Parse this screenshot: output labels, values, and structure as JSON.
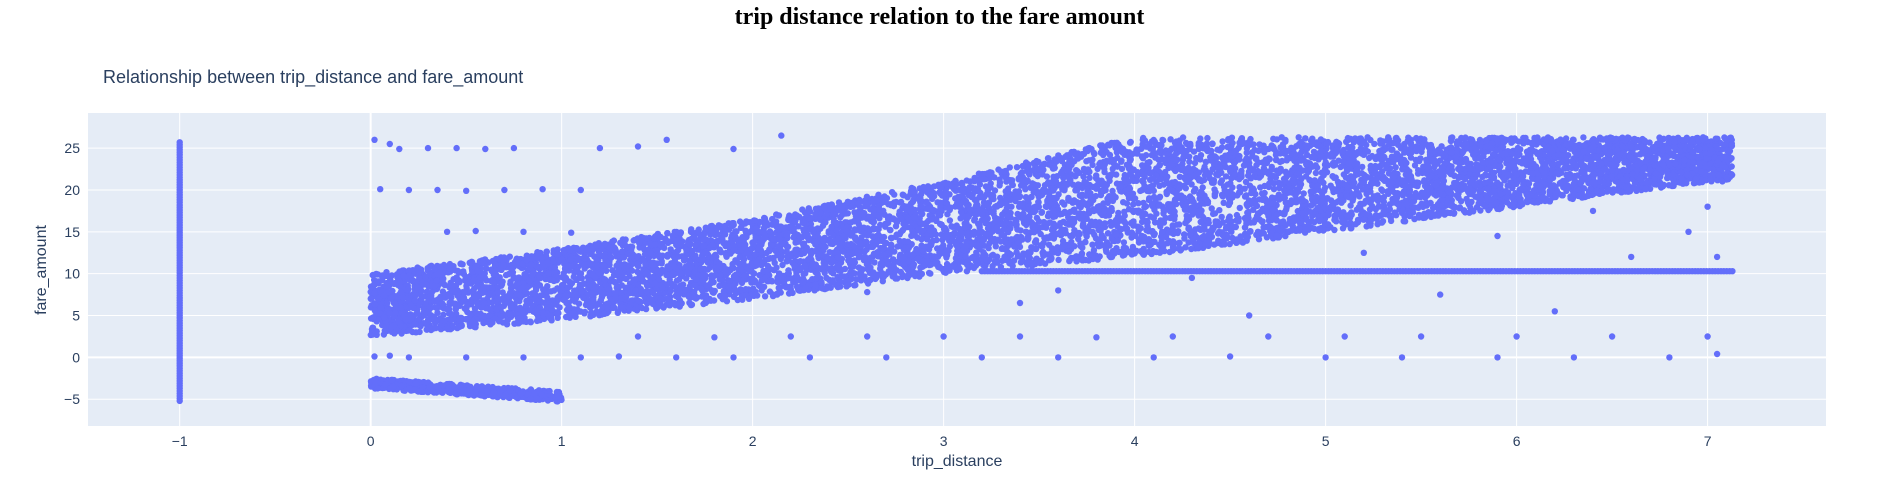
{
  "page_title": "trip distance relation to the fare amount",
  "colors": {
    "plot_bg": "#e5ecf6",
    "grid": "#ffffff",
    "marker": "#636efa",
    "text": "#2a3f5f"
  },
  "chart_data": {
    "type": "scatter",
    "title": "Relationship between trip_distance and fare_amount",
    "xlabel": "trip_distance",
    "ylabel": "fare_amount",
    "xlim": [
      -1.48,
      7.62
    ],
    "ylim": [
      -8.2,
      29.2
    ],
    "x_ticks": [
      -1,
      0,
      1,
      2,
      3,
      4,
      5,
      6,
      7
    ],
    "y_ticks": [
      -5,
      0,
      5,
      10,
      15,
      20,
      25
    ],
    "grid": true,
    "series": [
      {
        "color": "#636efa",
        "description_of_distribution": {
          "vertical_strip_at_x": -1,
          "strip_y_range": [
            -5.2,
            26.0
          ],
          "main_band_lower_edge": [
            [
              0,
              2.5
            ],
            [
              1,
              4.5
            ],
            [
              2,
              7
            ],
            [
              3,
              10
            ],
            [
              4,
              12
            ],
            [
              5,
              15
            ],
            [
              6,
              18
            ],
            [
              7,
              21
            ]
          ],
          "main_band_upper_edge": [
            [
              0,
              10
            ],
            [
              1,
              13
            ],
            [
              2,
              16.5
            ],
            [
              3,
              21
            ],
            [
              4,
              26.3
            ],
            [
              7.13,
              26.3
            ]
          ],
          "x_max": 7.13,
          "horizontal_line_y": 10.3,
          "horizontal_line_x_range": [
            3.2,
            7.13
          ],
          "zero_fare_row_y": 0,
          "low_fare_row_y": 2.5,
          "negative_cluster": {
            "x_range": [
              0,
              1.0
            ],
            "y_range": [
              -5.4,
              -2.5
            ]
          }
        },
        "points": [
          [
            0.02,
            26.0
          ],
          [
            0.1,
            25.5
          ],
          [
            0.15,
            24.9
          ],
          [
            0.3,
            25.0
          ],
          [
            0.45,
            25.0
          ],
          [
            0.6,
            24.9
          ],
          [
            0.75,
            25.0
          ],
          [
            1.2,
            25.0
          ],
          [
            1.4,
            25.2
          ],
          [
            1.55,
            26.0
          ],
          [
            1.9,
            24.9
          ],
          [
            2.15,
            26.5
          ],
          [
            0.05,
            20.1
          ],
          [
            0.2,
            20.0
          ],
          [
            0.35,
            20.0
          ],
          [
            0.5,
            19.9
          ],
          [
            0.7,
            20.0
          ],
          [
            0.9,
            20.1
          ],
          [
            1.1,
            20.0
          ],
          [
            0.4,
            15.0
          ],
          [
            0.55,
            15.1
          ],
          [
            0.8,
            15.0
          ],
          [
            1.05,
            14.9
          ],
          [
            0.25,
            10.1
          ],
          [
            0.02,
            0.1
          ],
          [
            0.1,
            0.2
          ],
          [
            0.2,
            0.0
          ],
          [
            0.5,
            0.0
          ],
          [
            0.8,
            0.0
          ],
          [
            1.1,
            0.0
          ],
          [
            1.3,
            0.1
          ],
          [
            1.6,
            0.0
          ],
          [
            1.9,
            0.0
          ],
          [
            2.3,
            0.0
          ],
          [
            2.7,
            0.0
          ],
          [
            3.2,
            0.0
          ],
          [
            3.6,
            0.0
          ],
          [
            4.1,
            0.0
          ],
          [
            4.5,
            0.1
          ],
          [
            5.0,
            0.0
          ],
          [
            5.4,
            0.0
          ],
          [
            5.9,
            0.0
          ],
          [
            6.3,
            0.0
          ],
          [
            6.8,
            0.0
          ],
          [
            7.05,
            0.4
          ],
          [
            1.4,
            2.5
          ],
          [
            1.8,
            2.4
          ],
          [
            2.2,
            2.5
          ],
          [
            2.6,
            2.5
          ],
          [
            3.0,
            2.5
          ],
          [
            3.4,
            2.5
          ],
          [
            3.8,
            2.4
          ],
          [
            4.2,
            2.5
          ],
          [
            4.7,
            2.5
          ],
          [
            5.1,
            2.5
          ],
          [
            5.5,
            2.5
          ],
          [
            6.0,
            2.5
          ],
          [
            6.5,
            2.5
          ],
          [
            7.0,
            2.5
          ],
          [
            6.2,
            5.5
          ],
          [
            5.6,
            7.5
          ],
          [
            4.6,
            5.0
          ],
          [
            3.4,
            6.5
          ],
          [
            5.9,
            14.5
          ],
          [
            6.6,
            12.0
          ],
          [
            7.0,
            18.0
          ],
          [
            6.9,
            15.0
          ],
          [
            6.4,
            17.5
          ],
          [
            5.2,
            12.5
          ],
          [
            4.3,
            9.5
          ],
          [
            3.6,
            8.0
          ],
          [
            2.6,
            7.8
          ],
          [
            7.05,
            12.0
          ]
        ]
      }
    ]
  }
}
